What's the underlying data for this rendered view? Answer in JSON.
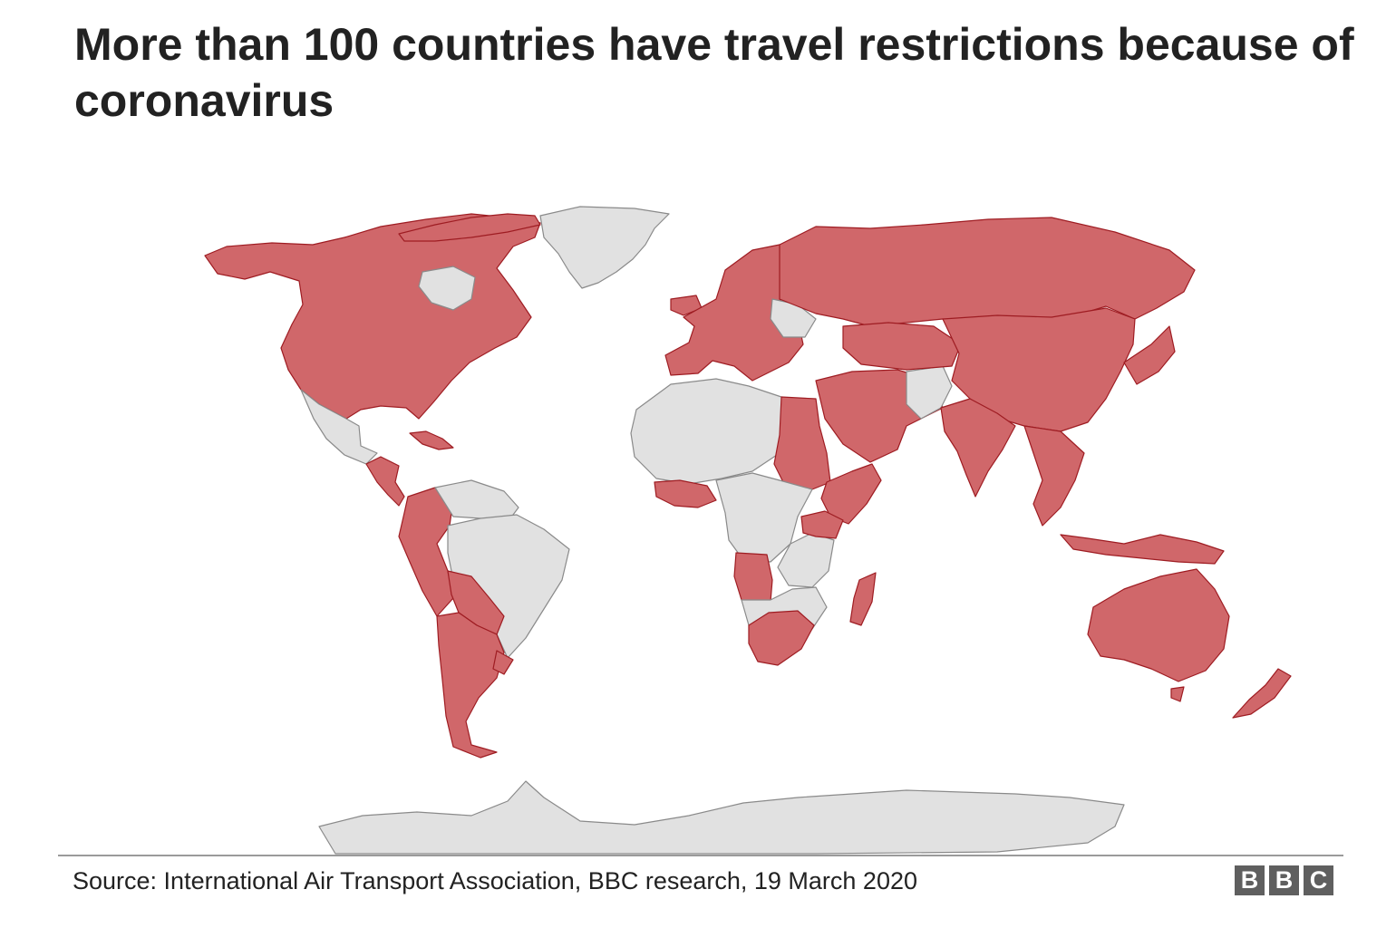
{
  "title": "More than 100 countries have travel restrictions because of coronavirus",
  "source": "Source:  International Air Transport Association, BBC research, 19 March 2020",
  "logo": {
    "letters": [
      "B",
      "B",
      "C"
    ]
  },
  "colors": {
    "restricted": "#d0676a",
    "restricted_border": "#9e1c22",
    "unrestricted": "#e1e1e1",
    "unrestricted_border": "#8a8a8a"
  },
  "legend": []
}
